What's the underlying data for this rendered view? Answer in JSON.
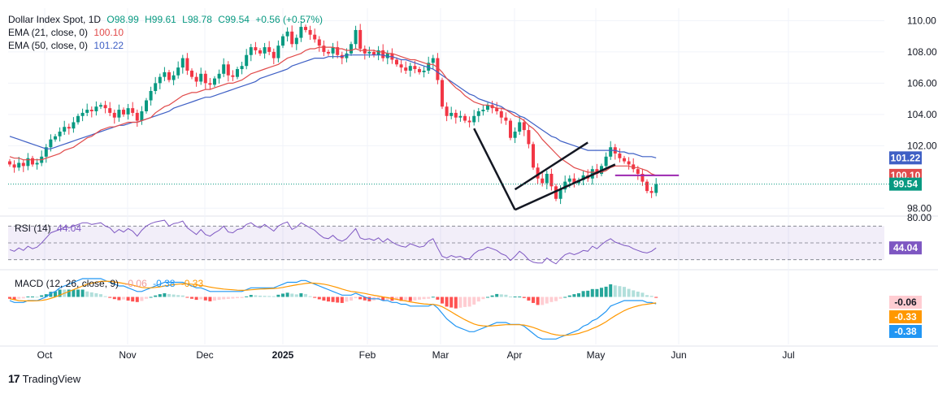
{
  "header": {
    "symbol": "Dollar Index Spot, 1D",
    "open": "O98.99",
    "high": "H99.61",
    "low": "L98.78",
    "close": "C99.54",
    "change": "+0.56 (+0.57%)",
    "ema21_label": "EMA (21, close, 0)",
    "ema21_value": "100.10",
    "ema50_label": "EMA (50, close, 0)",
    "ema50_value": "101.22",
    "rsi_label": "RSI (14)",
    "rsi_value": "44.04",
    "macd_label": "MACD (12, 26, close, 9)",
    "macd_hist": "-0.06",
    "macd_line": "-0.38",
    "macd_signal": "-0.33"
  },
  "colors": {
    "up": "#089981",
    "down": "#f23645",
    "ema21": "#e14b4b",
    "ema50": "#3f60c5",
    "rsi": "#7e57c2",
    "macd_line": "#2196f3",
    "signal_line": "#ff9800",
    "last_price": "#089981"
  },
  "footer": {
    "brand": "TradingView"
  },
  "chart_data": {
    "type": "candlestick",
    "title": "Dollar Index Spot, 1D",
    "x_ticks": [
      "Oct",
      "Nov",
      "Dec",
      "2025",
      "Feb",
      "Mar",
      "Apr",
      "May",
      "Jun",
      "Jul"
    ],
    "price_ticks": [
      "110.00",
      "108.00",
      "106.00",
      "104.00",
      "102.00",
      "98.00"
    ],
    "price_range": [
      97.6,
      110.8
    ],
    "last_price": "99.54",
    "ema21_last": "100.10",
    "ema50_last": "101.22",
    "close_series": [
      100.8,
      100.6,
      100.9,
      100.7,
      101.2,
      100.8,
      100.9,
      101.3,
      101.9,
      102.4,
      102.6,
      102.9,
      103.2,
      103.1,
      103.5,
      103.9,
      104.1,
      104.3,
      104.2,
      104.5,
      104.6,
      104.4,
      104.1,
      103.8,
      104.3,
      104.0,
      104.4,
      104.1,
      103.6,
      104.2,
      104.9,
      105.5,
      106.0,
      106.4,
      106.7,
      106.2,
      106.5,
      107.0,
      107.6,
      106.8,
      106.4,
      106.1,
      106.6,
      106.0,
      105.9,
      106.3,
      106.6,
      107.2,
      106.5,
      106.4,
      106.9,
      107.1,
      107.8,
      108.3,
      108.1,
      107.9,
      108.3,
      108.0,
      107.6,
      108.4,
      109.0,
      109.3,
      108.5,
      108.9,
      109.6,
      109.4,
      109.1,
      108.8,
      108.4,
      108.0,
      107.9,
      108.3,
      107.8,
      107.6,
      107.9,
      108.5,
      109.4,
      108.2,
      107.9,
      108.0,
      107.8,
      108.1,
      107.6,
      107.9,
      107.5,
      107.2,
      107.0,
      106.8,
      107.1,
      106.9,
      106.7,
      106.8,
      107.3,
      107.6,
      106.2,
      104.5,
      103.9,
      104.1,
      103.8,
      103.9,
      103.6,
      103.5,
      103.9,
      104.2,
      104.3,
      104.6,
      104.4,
      104.2,
      103.8,
      103.6,
      102.5,
      102.9,
      103.5,
      103.0,
      102.1,
      100.6,
      99.9,
      99.6,
      100.2,
      99.4,
      98.6,
      99.2,
      99.7,
      99.9,
      99.6,
      99.8,
      100.1,
      99.9,
      100.5,
      100.2,
      100.7,
      101.3,
      101.9,
      101.5,
      101.2,
      101.0,
      100.8,
      100.5,
      100.2,
      99.7,
      99.1,
      98.98,
      99.54
    ],
    "ema21_series": [
      101.3,
      101.2,
      101.2,
      101.1,
      101.1,
      101.1,
      101.1,
      101.1,
      101.2,
      101.3,
      101.4,
      101.5,
      101.7,
      101.8,
      101.9,
      102.1,
      102.3,
      102.5,
      102.6,
      102.8,
      103.0,
      103.1,
      103.2,
      103.2,
      103.3,
      103.4,
      103.5,
      103.5,
      103.5,
      103.6,
      103.7,
      103.8,
      104.1,
      104.3,
      104.5,
      104.6,
      104.8,
      105.0,
      105.2,
      105.3,
      105.4,
      105.4,
      105.5,
      105.6,
      105.6,
      105.7,
      105.8,
      105.9,
      106.0,
      106.0,
      106.1,
      106.2,
      106.4,
      106.6,
      106.7,
      106.8,
      106.9,
      107.0,
      107.1,
      107.2,
      107.4,
      107.6,
      107.7,
      107.8,
      107.9,
      108.1,
      108.2,
      108.2,
      108.3,
      108.3,
      108.3,
      108.3,
      108.2,
      108.2,
      108.1,
      108.1,
      108.2,
      108.1,
      108.1,
      108.1,
      108.1,
      108.0,
      108.0,
      107.9,
      107.9,
      107.8,
      107.7,
      107.6,
      107.5,
      107.5,
      107.4,
      107.3,
      107.2,
      107.2,
      107.0,
      106.7,
      106.3,
      106.0,
      105.7,
      105.5,
      105.2,
      105.0,
      104.8,
      104.7,
      104.6,
      104.6,
      104.5,
      104.4,
      104.4,
      104.3,
      104.1,
      103.9,
      103.8,
      103.6,
      103.3,
      103.1,
      102.8,
      102.4,
      102.1,
      101.8,
      101.5,
      101.2,
      101.0,
      100.8,
      100.6,
      100.5,
      100.4,
      100.3,
      100.3,
      100.3,
      100.3,
      100.4,
      100.6,
      100.7,
      100.7,
      100.7,
      100.7,
      100.6,
      100.6,
      100.5,
      100.4,
      100.2,
      100.1
    ],
    "ema50_series": [
      102.6,
      102.5,
      102.4,
      102.3,
      102.2,
      102.1,
      102.0,
      101.9,
      101.8,
      101.8,
      101.9,
      102.0,
      102.1,
      102.2,
      102.3,
      102.4,
      102.5,
      102.6,
      102.7,
      102.8,
      102.9,
      103.0,
      103.1,
      103.2,
      103.3,
      103.3,
      103.4,
      103.5,
      103.5,
      103.6,
      103.7,
      103.8,
      103.9,
      104.0,
      104.1,
      104.2,
      104.4,
      104.5,
      104.6,
      104.7,
      104.8,
      104.9,
      105.0,
      105.1,
      105.1,
      105.2,
      105.3,
      105.4,
      105.5,
      105.6,
      105.7,
      105.8,
      105.9,
      106.0,
      106.1,
      106.3,
      106.4,
      106.5,
      106.6,
      106.7,
      106.8,
      106.9,
      107.1,
      107.2,
      107.3,
      107.4,
      107.5,
      107.6,
      107.6,
      107.6,
      107.7,
      107.7,
      107.7,
      107.7,
      107.8,
      107.8,
      107.8,
      107.8,
      107.8,
      107.8,
      107.8,
      107.8,
      107.8,
      107.7,
      107.7,
      107.6,
      107.5,
      107.5,
      107.4,
      107.3,
      107.2,
      107.1,
      107.0,
      106.9,
      106.7,
      106.5,
      106.3,
      106.1,
      105.9,
      105.7,
      105.5,
      105.3,
      105.2,
      105.0,
      104.9,
      104.8,
      104.7,
      104.6,
      104.5,
      104.3,
      104.2,
      104.1,
      103.9,
      103.8,
      103.6,
      103.4,
      103.2,
      103.0,
      102.8,
      102.6,
      102.5,
      102.3,
      102.2,
      102.1,
      102.0,
      101.9,
      101.8,
      101.7,
      101.7,
      101.7,
      101.7,
      101.7,
      101.7,
      101.7,
      101.6,
      101.6,
      101.5,
      101.5,
      101.4,
      101.3,
      101.3,
      101.3,
      101.22
    ],
    "rsi_range": [
      20,
      80
    ],
    "rsi_levels": [
      70,
      50,
      30
    ],
    "rsi_tick": "80.00",
    "rsi_last": "44.04",
    "rsi_series": [
      42,
      40,
      44,
      41,
      46,
      43,
      45,
      50,
      56,
      62,
      64,
      66,
      69,
      68,
      70,
      72,
      74,
      74,
      72,
      73,
      74,
      70,
      68,
      62,
      66,
      63,
      67,
      64,
      58,
      65,
      70,
      73,
      75,
      76,
      77,
      70,
      73,
      74,
      76,
      68,
      64,
      60,
      66,
      60,
      58,
      62,
      65,
      70,
      63,
      62,
      66,
      67,
      72,
      74,
      70,
      68,
      72,
      68,
      64,
      70,
      73,
      75,
      66,
      69,
      74,
      71,
      68,
      65,
      60,
      56,
      55,
      59,
      54,
      52,
      55,
      61,
      67,
      56,
      54,
      55,
      53,
      56,
      51,
      55,
      51,
      48,
      46,
      45,
      49,
      47,
      45,
      46,
      52,
      55,
      44,
      34,
      32,
      35,
      33,
      34,
      31,
      31,
      37,
      41,
      42,
      45,
      43,
      41,
      37,
      35,
      29,
      34,
      40,
      36,
      30,
      27,
      26,
      26,
      32,
      28,
      25,
      31,
      36,
      38,
      36,
      38,
      41,
      40,
      46,
      43,
      48,
      52,
      55,
      51,
      49,
      47,
      46,
      43,
      41,
      39,
      38,
      40,
      44.04
    ],
    "macd_range": [
      -2.6,
      1.4
    ],
    "macd_line_series": [
      -0.2,
      -0.3,
      -0.3,
      -0.3,
      -0.2,
      -0.2,
      -0.2,
      -0.1,
      0.0,
      0.2,
      0.3,
      0.5,
      0.6,
      0.7,
      0.8,
      0.9,
      1.0,
      1.0,
      1.0,
      1.0,
      1.0,
      0.9,
      0.8,
      0.7,
      0.6,
      0.6,
      0.5,
      0.4,
      0.3,
      0.3,
      0.4,
      0.5,
      0.6,
      0.7,
      0.8,
      0.8,
      0.8,
      0.8,
      0.8,
      0.7,
      0.6,
      0.5,
      0.5,
      0.4,
      0.3,
      0.3,
      0.3,
      0.3,
      0.3,
      0.3,
      0.3,
      0.3,
      0.4,
      0.5,
      0.5,
      0.5,
      0.5,
      0.5,
      0.5,
      0.6,
      0.7,
      0.8,
      0.8,
      0.8,
      0.9,
      0.9,
      0.8,
      0.7,
      0.6,
      0.5,
      0.4,
      0.3,
      0.2,
      0.1,
      0.1,
      0.1,
      0.2,
      0.1,
      0.0,
      -0.1,
      -0.1,
      -0.1,
      -0.2,
      -0.2,
      -0.3,
      -0.3,
      -0.4,
      -0.4,
      -0.5,
      -0.5,
      -0.5,
      -0.5,
      -0.5,
      -0.4,
      -0.6,
      -0.9,
      -1.2,
      -1.4,
      -1.6,
      -1.7,
      -1.8,
      -1.9,
      -1.9,
      -1.8,
      -1.7,
      -1.6,
      -1.5,
      -1.4,
      -1.4,
      -1.4,
      -1.5,
      -1.5,
      -1.5,
      -1.6,
      -1.8,
      -2.0,
      -2.2,
      -2.3,
      -2.3,
      -2.3,
      -2.3,
      -2.2,
      -2.1,
      -2.0,
      -1.9,
      -1.8,
      -1.6,
      -1.5,
      -1.3,
      -1.2,
      -1.0,
      -0.8,
      -0.5,
      -0.4,
      -0.3,
      -0.2,
      -0.2,
      -0.2,
      -0.2,
      -0.2,
      -0.3,
      -0.3,
      -0.38
    ],
    "signal_series": [
      -0.1,
      -0.15,
      -0.2,
      -0.22,
      -0.22,
      -0.22,
      -0.21,
      -0.19,
      -0.15,
      -0.08,
      0.0,
      0.1,
      0.2,
      0.3,
      0.4,
      0.5,
      0.6,
      0.7,
      0.75,
      0.8,
      0.85,
      0.86,
      0.85,
      0.82,
      0.78,
      0.74,
      0.7,
      0.65,
      0.58,
      0.52,
      0.5,
      0.5,
      0.52,
      0.55,
      0.6,
      0.64,
      0.67,
      0.7,
      0.72,
      0.72,
      0.7,
      0.66,
      0.63,
      0.59,
      0.54,
      0.5,
      0.46,
      0.43,
      0.41,
      0.39,
      0.37,
      0.36,
      0.37,
      0.39,
      0.41,
      0.43,
      0.44,
      0.45,
      0.46,
      0.48,
      0.52,
      0.57,
      0.62,
      0.66,
      0.7,
      0.74,
      0.76,
      0.75,
      0.73,
      0.7,
      0.65,
      0.58,
      0.51,
      0.43,
      0.36,
      0.3,
      0.27,
      0.23,
      0.19,
      0.14,
      0.09,
      0.05,
      0.0,
      -0.04,
      -0.09,
      -0.13,
      -0.18,
      -0.22,
      -0.27,
      -0.31,
      -0.35,
      -0.38,
      -0.4,
      -0.41,
      -0.45,
      -0.54,
      -0.67,
      -0.82,
      -0.97,
      -1.11,
      -1.25,
      -1.37,
      -1.48,
      -1.55,
      -1.58,
      -1.6,
      -1.58,
      -1.56,
      -1.54,
      -1.52,
      -1.52,
      -1.52,
      -1.52,
      -1.54,
      -1.6,
      -1.67,
      -1.76,
      -1.86,
      -1.94,
      -2.02,
      -2.07,
      -2.1,
      -2.1,
      -2.08,
      -2.05,
      -2.0,
      -1.92,
      -1.84,
      -1.73,
      -1.63,
      -1.5,
      -1.36,
      -1.19,
      -1.03,
      -0.89,
      -0.75,
      -0.64,
      -0.56,
      -0.49,
      -0.43,
      -0.4,
      -0.36,
      -0.33
    ],
    "pattern_lines": {
      "down_leg": [
        [
          102,
          103.1
        ],
        [
          111,
          97.9
        ]
      ],
      "channel_lower": [
        [
          111,
          97.9
        ],
        [
          133,
          100.8
        ]
      ],
      "channel_upper": [
        [
          111,
          99.2
        ],
        [
          127,
          102.2
        ]
      ],
      "resistance": [
        [
          133,
          100.1
        ],
        [
          147,
          100.1
        ]
      ]
    }
  }
}
